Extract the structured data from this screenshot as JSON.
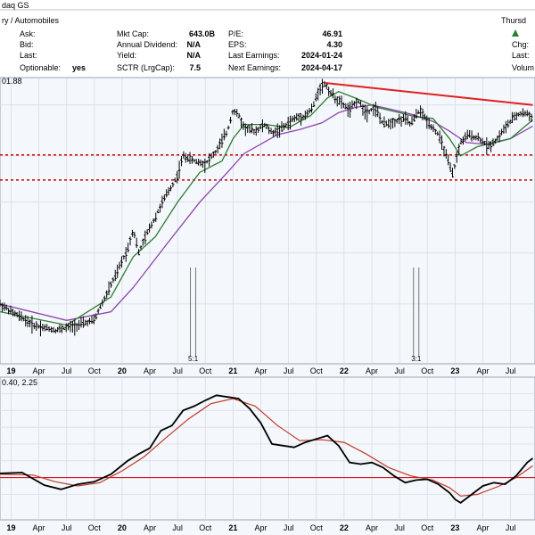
{
  "header": {
    "exchange_fragment": "daq GS",
    "industry_fragment": "ry / Automobiles",
    "ask_label": "Ask:",
    "bid_label": "Bid:",
    "last_label": "Last:",
    "optionable_label": "Optionable:",
    "optionable_value": "yes",
    "mkt_cap_label": "Mkt Cap:",
    "mkt_cap_value": "643.0B",
    "annual_dividend_label": "Annual Dividend:",
    "annual_dividend_value": "N/A",
    "yield_label": "Yield:",
    "yield_value": "N/A",
    "sctr_label": "SCTR (LrgCap):",
    "sctr_value": "7.5",
    "pe_label": "P/E:",
    "pe_value": "46.91",
    "eps_label": "EPS:",
    "eps_value": "4.30",
    "last_earnings_label": "Last Earnings:",
    "last_earnings_value": "2024-01-24",
    "next_earnings_label": "Next Earnings:",
    "next_earnings_value": "2024-04-17",
    "day_fragment": "Thursd",
    "chg_label": "Chg:",
    "last2_label": "Last:",
    "volume_fragment": "Volum"
  },
  "chart_data": [
    {
      "type": "line",
      "subtype": "ohlc-price",
      "price_label_fragment": "01.88",
      "x_ticks": [
        "19",
        "Apr",
        "Jul",
        "Oct",
        "20",
        "Apr",
        "Jul",
        "Oct",
        "21",
        "Apr",
        "Jul",
        "Oct",
        "22",
        "Apr",
        "Jul",
        "Oct",
        "23",
        "Apr",
        "Jul"
      ],
      "x_tick_bold": [
        "19",
        "20",
        "21",
        "22",
        "23"
      ],
      "split_markers": [
        {
          "label": "5:1",
          "x": 2020.64
        },
        {
          "label": "3:1",
          "x": 2022.65
        }
      ],
      "price": {
        "x": [
          2018.9,
          2019.0,
          2019.2,
          2019.4,
          2019.6,
          2019.75,
          2019.85,
          2019.95,
          2020.05,
          2020.1,
          2020.15,
          2020.2,
          2020.3,
          2020.45,
          2020.5,
          2020.55,
          2020.6,
          2020.65,
          2020.75,
          2020.85,
          2020.95,
          2021.0,
          2021.05,
          2021.1,
          2021.2,
          2021.28,
          2021.35,
          2021.45,
          2021.55,
          2021.65,
          2021.72,
          2021.78,
          2021.83,
          2021.87,
          2021.92,
          2021.97,
          2022.05,
          2022.12,
          2022.2,
          2022.28,
          2022.35,
          2022.45,
          2022.55,
          2022.6,
          2022.68,
          2022.75,
          2022.85,
          2022.95,
          2022.98,
          2023.05,
          2023.12,
          2023.22,
          2023.3,
          2023.38,
          2023.45,
          2023.55,
          2023.62,
          2023.7
        ],
        "y": [
          20,
          18,
          15,
          14,
          15,
          16,
          22,
          30,
          42,
          55,
          40,
          48,
          65,
          100,
          115,
          150,
          145,
          140,
          135,
          160,
          210,
          280,
          260,
          220,
          210,
          230,
          205,
          220,
          250,
          260,
          290,
          380,
          400,
          360,
          330,
          310,
          280,
          320,
          270,
          290,
          230,
          240,
          250,
          230,
          280,
          240,
          200,
          130,
          115,
          180,
          200,
          190,
          170,
          190,
          220,
          260,
          270,
          255
        ]
      },
      "sma_short": {
        "x": [
          2018.9,
          2019.5,
          2019.9,
          2020.1,
          2020.3,
          2020.5,
          2020.7,
          2020.9,
          2021.0,
          2021.1,
          2021.3,
          2021.5,
          2021.7,
          2021.85,
          2021.95,
          2022.1,
          2022.3,
          2022.5,
          2022.65,
          2022.8,
          2022.95,
          2023.05,
          2023.2,
          2023.35,
          2023.5,
          2023.65,
          2023.7
        ],
        "y": [
          18,
          15,
          22,
          38,
          50,
          80,
          120,
          140,
          190,
          230,
          230,
          220,
          260,
          330,
          360,
          330,
          290,
          270,
          255,
          250,
          190,
          150,
          170,
          180,
          190,
          230,
          245
        ]
      },
      "sma_long": {
        "x": [
          2018.9,
          2019.5,
          2019.9,
          2020.1,
          2020.4,
          2020.7,
          2020.95,
          2021.1,
          2021.4,
          2021.6,
          2021.8,
          2021.95,
          2022.1,
          2022.25,
          2022.45,
          2022.6,
          2022.8,
          2022.95,
          2023.1,
          2023.3,
          2023.5,
          2023.7
        ],
        "y": [
          20,
          16,
          18,
          25,
          45,
          80,
          120,
          155,
          200,
          215,
          235,
          270,
          290,
          300,
          280,
          265,
          240,
          210,
          180,
          175,
          190,
          225
        ]
      },
      "trendline": {
        "x": [
          2021.83,
          2023.7
        ],
        "y": [
          405,
          300
        ]
      },
      "support_levels": [
        152,
        108
      ],
      "colors": {
        "price": "#000000",
        "sma_short": "#2e7d32",
        "sma_long": "#8e44ad",
        "trendline": "#e02020",
        "support": "#cc0000"
      }
    },
    {
      "type": "line",
      "subtype": "macd",
      "label_fragment": "0.40, 2.25",
      "macd": {
        "x": [
          2018.9,
          2019.1,
          2019.3,
          2019.45,
          2019.6,
          2019.75,
          2019.9,
          2020.05,
          2020.15,
          2020.25,
          2020.35,
          2020.45,
          2020.55,
          2020.65,
          2020.75,
          2020.85,
          2020.95,
          2021.05,
          2021.15,
          2021.25,
          2021.35,
          2021.45,
          2021.55,
          2021.65,
          2021.75,
          2021.85,
          2021.95,
          2022.05,
          2022.15,
          2022.25,
          2022.35,
          2022.45,
          2022.55,
          2022.65,
          2022.75,
          2022.85,
          2022.95,
          2023.0,
          2023.05,
          2023.15,
          2023.25,
          2023.35,
          2023.45,
          2023.55,
          2023.65,
          2023.7
        ],
        "y": [
          0.5,
          0.6,
          -0.9,
          -1.4,
          -0.8,
          -0.5,
          0.4,
          2.0,
          2.8,
          3.5,
          5.6,
          6.2,
          8.0,
          8.5,
          9.2,
          9.8,
          9.6,
          9.4,
          8.2,
          6.5,
          4.0,
          3.8,
          3.6,
          4.2,
          4.6,
          5.0,
          3.8,
          1.8,
          1.6,
          1.8,
          1.2,
          0.2,
          -0.6,
          -0.3,
          -0.2,
          -0.8,
          -1.8,
          -2.6,
          -3.0,
          -2.0,
          -1.0,
          -0.6,
          -0.8,
          0.2,
          1.8,
          2.3
        ]
      },
      "signal": {
        "x": [
          2018.9,
          2019.2,
          2019.4,
          2019.6,
          2019.8,
          2020.0,
          2020.2,
          2020.4,
          2020.6,
          2020.8,
          2021.0,
          2021.2,
          2021.4,
          2021.6,
          2021.8,
          2022.0,
          2022.2,
          2022.4,
          2022.6,
          2022.8,
          2022.95,
          2023.05,
          2023.2,
          2023.4,
          2023.55,
          2023.7
        ],
        "y": [
          0.4,
          0.3,
          -0.5,
          -1.0,
          -0.6,
          0.8,
          2.5,
          4.8,
          7.0,
          8.8,
          9.4,
          8.5,
          6.2,
          4.4,
          4.5,
          4.2,
          2.8,
          1.2,
          0.2,
          -0.3,
          -1.2,
          -2.2,
          -2.0,
          -1.0,
          0.0,
          1.4
        ]
      },
      "zero": 0,
      "colors": {
        "macd": "#000000",
        "signal": "#c0392b",
        "zero": "#cc0000"
      },
      "x_ticks": [
        "19",
        "Apr",
        "Jul",
        "Oct",
        "20",
        "Apr",
        "Jul",
        "Oct",
        "21",
        "Apr",
        "Jul",
        "Oct",
        "22",
        "Apr",
        "Jul",
        "Oct",
        "23",
        "Apr",
        "Jul"
      ],
      "x_tick_bold": [
        "19",
        "20",
        "21",
        "22",
        "23"
      ]
    }
  ]
}
